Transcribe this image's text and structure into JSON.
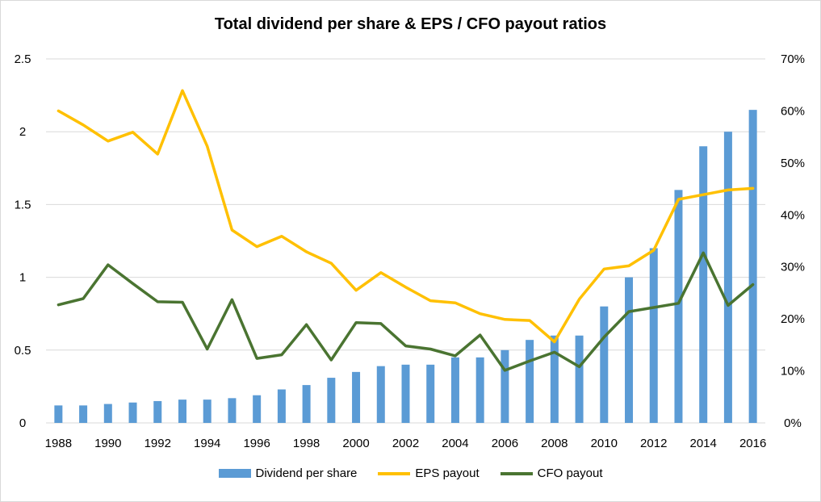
{
  "chart_data": {
    "type": "bar+line",
    "title": "Total dividend per share & EPS / CFO payout ratios",
    "categories": [
      "1988",
      "1989",
      "1990",
      "1991",
      "1992",
      "1993",
      "1994",
      "1995",
      "1996",
      "1997",
      "1998",
      "1999",
      "2000",
      "2001",
      "2002",
      "2003",
      "2004",
      "2005",
      "2006",
      "2007",
      "2008",
      "2009",
      "2010",
      "2011",
      "2012",
      "2013",
      "2014",
      "2015",
      "2016"
    ],
    "x_tick_labels": [
      "1988",
      "1990",
      "1992",
      "1994",
      "1996",
      "1998",
      "2000",
      "2002",
      "2004",
      "2006",
      "2008",
      "2010",
      "2012",
      "2014",
      "2016"
    ],
    "left_axis": {
      "ylim": [
        0,
        2.5
      ],
      "ticks": [
        "0",
        "0.5",
        "1",
        "1.5",
        "2",
        "2.5"
      ]
    },
    "right_axis": {
      "ylim": [
        0,
        70
      ],
      "ticks": [
        "0%",
        "10%",
        "20%",
        "30%",
        "40%",
        "50%",
        "60%",
        "70%"
      ]
    },
    "grid": true,
    "legend_position": "bottom",
    "series": [
      {
        "name": "Dividend per share",
        "kind": "bar",
        "axis": "left",
        "color": "#5b9bd5",
        "values": [
          0.12,
          0.12,
          0.13,
          0.14,
          0.15,
          0.16,
          0.16,
          0.17,
          0.19,
          0.23,
          0.26,
          0.31,
          0.35,
          0.39,
          0.4,
          0.4,
          0.45,
          0.45,
          0.5,
          0.57,
          0.6,
          0.6,
          0.8,
          1.0,
          1.2,
          1.6,
          1.9,
          2.0,
          2.15
        ]
      },
      {
        "name": "EPS payout",
        "kind": "line",
        "axis": "right",
        "color": "#ffc000",
        "values": [
          60.0,
          57.3,
          54.2,
          55.9,
          51.7,
          63.9,
          53.2,
          37.1,
          33.9,
          35.9,
          32.9,
          30.7,
          25.5,
          28.9,
          26.1,
          23.5,
          23.1,
          21.0,
          19.9,
          19.7,
          15.6,
          23.8,
          29.6,
          30.2,
          33.2,
          43.0,
          43.9,
          44.8,
          45.1
        ]
      },
      {
        "name": "CFO payout",
        "kind": "line",
        "axis": "right",
        "color": "#4a7431",
        "values": [
          22.7,
          23.9,
          30.4,
          26.8,
          23.3,
          23.2,
          14.2,
          23.7,
          12.4,
          13.1,
          18.9,
          12.1,
          19.3,
          19.1,
          14.8,
          14.2,
          12.9,
          16.9,
          10.1,
          11.9,
          13.6,
          10.8,
          16.5,
          21.4,
          22.2,
          23.0,
          32.7,
          22.6,
          26.6
        ]
      }
    ]
  }
}
